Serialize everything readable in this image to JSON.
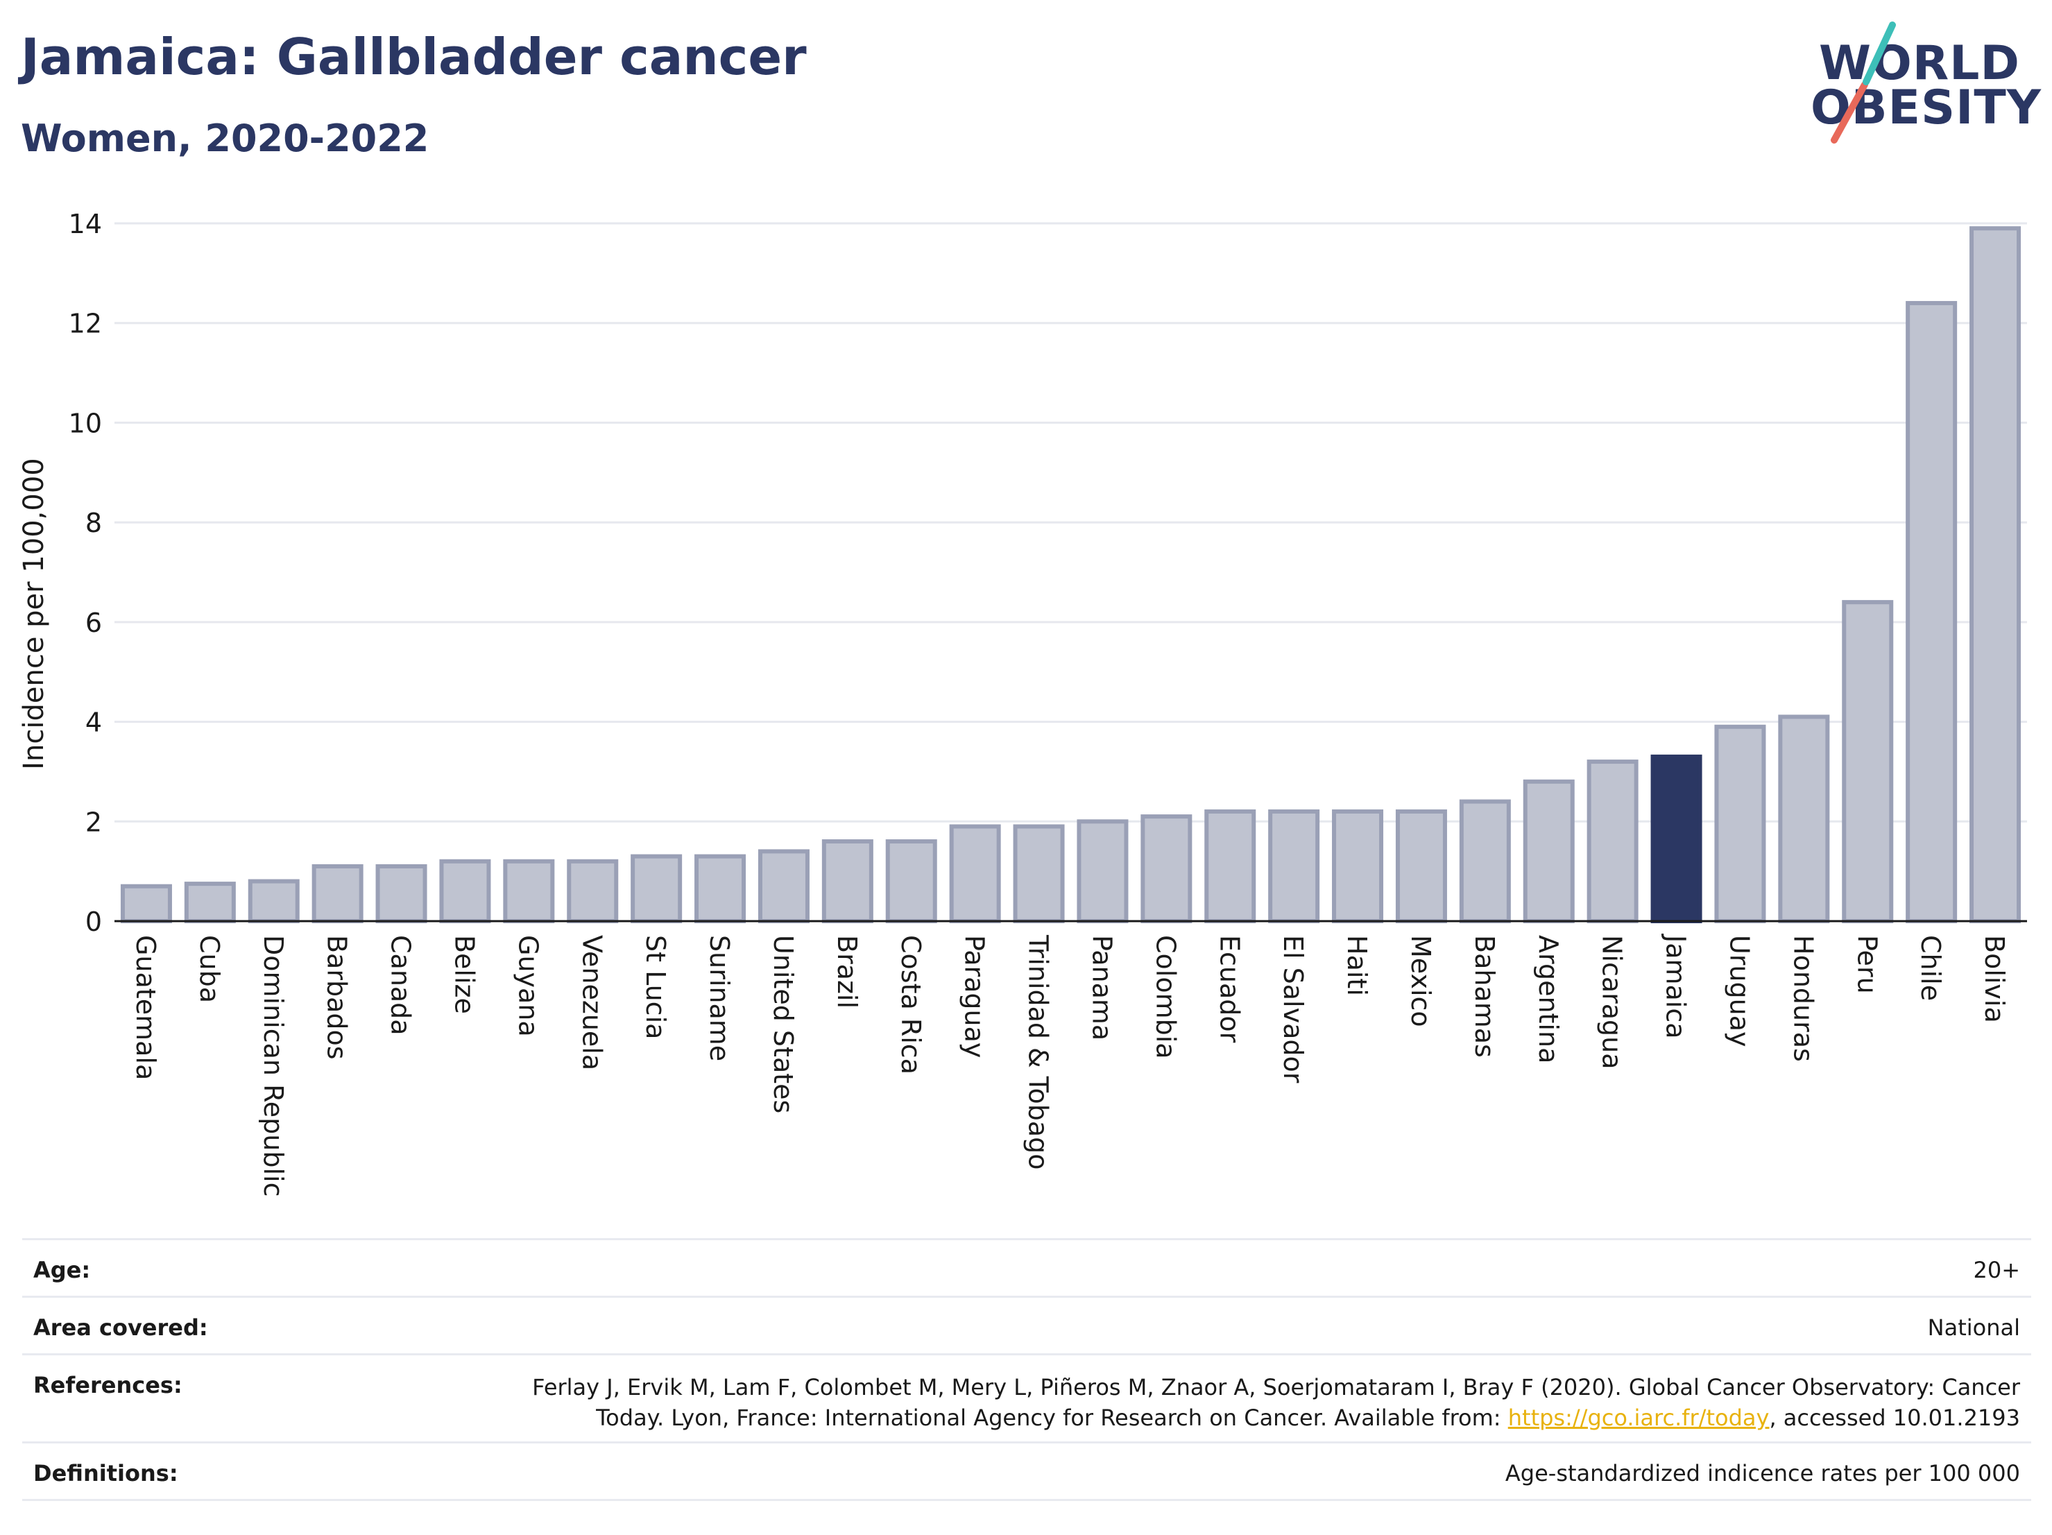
{
  "header": {
    "title": "Jamaica: Gallbladder cancer",
    "subtitle": "Women, 2020-2022"
  },
  "logo": {
    "line1": "WORLD",
    "line2": "OBESITY"
  },
  "chart_data": {
    "type": "bar",
    "ylabel": "Incidence per 100,000",
    "ylim": [
      0,
      14
    ],
    "yticks": [
      0,
      2,
      4,
      6,
      8,
      10,
      12,
      14
    ],
    "grid": true,
    "highlight": "Jamaica",
    "colors": {
      "bar": "#bfc3d0",
      "bar_edge": "#9aa0b6",
      "highlight": "#2b3763"
    },
    "categories": [
      "Guatemala",
      "Cuba",
      "Dominican Republic",
      "Barbados",
      "Canada",
      "Belize",
      "Guyana",
      "Venezuela",
      "St Lucia",
      "Suriname",
      "United States",
      "Brazil",
      "Costa Rica",
      "Paraguay",
      "Trinidad & Tobago",
      "Panama",
      "Colombia",
      "Ecuador",
      "El Salvador",
      "Haiti",
      "Mexico",
      "Bahamas",
      "Argentina",
      "Nicaragua",
      "Jamaica",
      "Uruguay",
      "Honduras",
      "Peru",
      "Chile",
      "Bolivia"
    ],
    "values": [
      0.7,
      0.75,
      0.8,
      1.1,
      1.1,
      1.2,
      1.2,
      1.2,
      1.3,
      1.3,
      1.4,
      1.6,
      1.6,
      1.9,
      1.9,
      2.0,
      2.1,
      2.2,
      2.2,
      2.2,
      2.2,
      2.4,
      2.8,
      3.2,
      3.3,
      3.9,
      4.1,
      6.4,
      12.4,
      13.9
    ]
  },
  "meta": {
    "age_label": "Age:",
    "age_value": "20+",
    "area_label": "Area covered:",
    "area_value": "National",
    "references_label": "References:",
    "references_line1": "Ferlay J, Ervik M, Lam F, Colombet M, Mery L, Piñeros M, Znaor A, Soerjomataram I, Bray F (2020). Global Cancer Observatory: Cancer",
    "references_line2_pre": "Today. Lyon, France: International Agency for Research on Cancer. Available from: ",
    "references_link": "https://gco.iarc.fr/today",
    "references_line2_post": ", accessed 10.01.2193",
    "definitions_label": "Definitions:",
    "definitions_value": "Age-standardized indicence rates per 100 000"
  }
}
